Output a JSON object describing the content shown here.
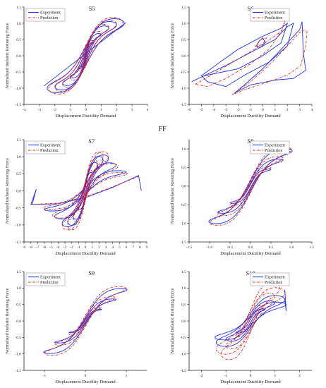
{
  "figure": {
    "title": "FF",
    "legend": {
      "experiment": "Experiment",
      "prediction": "Prediction"
    },
    "colors": {
      "experiment": "#1f2fe6",
      "prediction": "#e01b1b",
      "axis": "#222222"
    }
  },
  "chart_data": [
    {
      "type": "line",
      "panel_label": "S5",
      "xlabel": "Displacement Ductility Demand",
      "ylabel": "Normalized Inelastic Restoring Force",
      "xlim": [
        -4,
        4
      ],
      "ylim": [
        -1.5,
        1.5
      ],
      "xticks": [
        "-4",
        "-3",
        "-2",
        "-1",
        "0",
        "1",
        "2",
        "3",
        "4"
      ],
      "yticks": [
        "-1.5",
        "-1.0",
        "-0.5",
        "0.0",
        "0.5",
        "1.0",
        "1.5"
      ],
      "legend_position": "top-left",
      "grid": false,
      "series": [
        {
          "name": "Experiment",
          "style": "solid",
          "loops": [
            {
              "amp": 0.5,
              "f": 0.4,
              "w": 0.08
            },
            {
              "amp": 1.0,
              "f": 0.65,
              "w": 0.12
            },
            {
              "amp": 1.5,
              "f": 0.85,
              "w": 0.16
            },
            {
              "amp": 2.0,
              "f": 0.95,
              "w": 0.2
            },
            {
              "amp": 2.5,
              "f": 1.0,
              "w": 0.24
            }
          ],
          "extra_points": [
            [
              -2.7,
              -0.93
            ],
            [
              2.6,
              1.02
            ]
          ]
        },
        {
          "name": "Prediction",
          "style": "dashdot",
          "loops": [
            {
              "amp": 0.5,
              "f": 0.45,
              "w": 0.1
            },
            {
              "amp": 1.0,
              "f": 0.7,
              "w": 0.15
            },
            {
              "amp": 1.5,
              "f": 0.88,
              "w": 0.19
            },
            {
              "amp": 2.0,
              "f": 0.98,
              "w": 0.22
            },
            {
              "amp": 2.4,
              "f": 1.02,
              "w": 0.26
            }
          ],
          "extra_points": []
        }
      ]
    },
    {
      "type": "line",
      "panel_label": "S6",
      "xlabel": "Displacement Ductility Demand",
      "ylabel": "Normalized Inelastic Restoring Force",
      "xlim": [
        -6,
        4
      ],
      "ylim": [
        -1.5,
        1.5
      ],
      "xticks": [
        "-6",
        "-5",
        "-4",
        "-3",
        "-2",
        "-1",
        "0",
        "1",
        "2",
        "3",
        "4"
      ],
      "yticks": [
        "-1.5",
        "-1.0",
        "-0.5",
        "0.0",
        "0.5",
        "1.0",
        "1.5"
      ],
      "legend_position": "top-right",
      "grid": false,
      "series": [
        {
          "name": "Experiment",
          "style": "solid",
          "paths": [
            [
              [
                -5.8,
                -0.8
              ],
              [
                -4.8,
                -0.62
              ],
              [
                -3.0,
                -0.3
              ],
              [
                -1.0,
                0.1
              ],
              [
                1.0,
                0.5
              ],
              [
                2.0,
                0.9
              ],
              [
                2.5,
                1.0
              ],
              [
                2.0,
                0.3
              ],
              [
                0.5,
                -0.2
              ],
              [
                -1.5,
                -0.6
              ],
              [
                -3.0,
                -0.95
              ],
              [
                -4.5,
                -0.8
              ],
              [
                -5.0,
                -0.62
              ],
              [
                -3.5,
                -0.2
              ],
              [
                -2.0,
                0.2
              ],
              [
                0.0,
                0.6
              ],
              [
                1.5,
                0.85
              ],
              [
                2.0,
                1.0
              ],
              [
                1.5,
                0.4
              ],
              [
                0.0,
                0.0
              ],
              [
                -2.0,
                -0.4
              ],
              [
                -4.8,
                -0.62
              ]
            ],
            [
              [
                -2.3,
                -1.15
              ],
              [
                -1.5,
                -0.9
              ],
              [
                0.0,
                -0.4
              ],
              [
                1.5,
                0.2
              ],
              [
                2.5,
                0.6
              ],
              [
                3.0,
                0.8
              ],
              [
                3.2,
                1.05
              ],
              [
                3.3,
                0.1
              ],
              [
                3.5,
                -0.45
              ],
              [
                2.5,
                -0.7
              ],
              [
                1.0,
                -0.75
              ],
              [
                -1.0,
                -0.9
              ],
              [
                -2.3,
                -1.15
              ]
            ],
            [
              [
                -0.5,
                0.3
              ],
              [
                -0.3,
                0.45
              ],
              [
                0.0,
                0.55
              ],
              [
                0.2,
                0.4
              ],
              [
                -0.2,
                0.25
              ],
              [
                -0.5,
                0.3
              ]
            ]
          ]
        },
        {
          "name": "Prediction",
          "style": "dashdot",
          "paths": [
            [
              [
                -5.5,
                -0.88
              ],
              [
                -4.0,
                -0.55
              ],
              [
                -2.0,
                -0.1
              ],
              [
                0.0,
                0.35
              ],
              [
                1.5,
                0.75
              ],
              [
                1.9,
                1.2
              ],
              [
                1.6,
                0.8
              ],
              [
                0.5,
                0.2
              ],
              [
                -1.0,
                -0.25
              ],
              [
                -3.0,
                -0.7
              ],
              [
                -4.5,
                -0.95
              ],
              [
                -5.5,
                -0.88
              ]
            ],
            [
              [
                -2.5,
                -1.2
              ],
              [
                -1.0,
                -0.8
              ],
              [
                0.5,
                -0.3
              ],
              [
                2.0,
                0.3
              ],
              [
                3.2,
                0.8
              ],
              [
                3.6,
                0.75
              ],
              [
                3.5,
                0.3
              ],
              [
                3.1,
                -0.3
              ],
              [
                2.0,
                -0.6
              ],
              [
                0.5,
                -0.8
              ],
              [
                -1.5,
                -1.05
              ],
              [
                -2.5,
                -1.2
              ]
            ],
            [
              [
                -0.6,
                0.28
              ],
              [
                -0.2,
                0.5
              ],
              [
                0.3,
                0.55
              ],
              [
                0.0,
                0.35
              ],
              [
                -0.6,
                0.28
              ]
            ]
          ]
        }
      ]
    },
    {
      "type": "line",
      "panel_label": "S7",
      "xlabel": "Displacement Ductility Demand",
      "ylabel": "Normalized Inelastic Restoring Force",
      "xlim": [
        -9,
        9
      ],
      "ylim": [
        -1.5,
        1.5
      ],
      "xticks": [
        "-9",
        "-8",
        "-7",
        "-6",
        "-5",
        "-4",
        "-3",
        "-2",
        "-1",
        "0",
        "1",
        "2",
        "3",
        "4",
        "5",
        "6",
        "7",
        "8",
        "9"
      ],
      "yticks": [
        "-1.5",
        "-1.0",
        "-0.5",
        "0.0",
        "0.5",
        "1.0",
        "1.5"
      ],
      "legend_position": "top-left",
      "grid": false,
      "series": [
        {
          "name": "Experiment",
          "style": "solid",
          "loops": [
            {
              "amp": 1.0,
              "f": 0.5,
              "w": 0.15
            },
            {
              "amp": 1.8,
              "f": 0.75,
              "w": 0.2
            },
            {
              "amp": 2.6,
              "f": 0.9,
              "w": 0.22
            },
            {
              "amp": 3.4,
              "f": 0.95,
              "w": 0.2
            },
            {
              "amp": 4.5,
              "f": 0.75,
              "w": 0.18
            },
            {
              "amp": 6.0,
              "f": 0.55,
              "w": 0.15
            }
          ],
          "extra_points": [
            [
              -7.8,
              -0.4
            ],
            [
              -8.0,
              -0.4
            ],
            [
              -7.2,
              0.05
            ],
            [
              -7.8,
              -0.4
            ],
            [
              -4.0,
              -0.38
            ],
            [
              0.0,
              -0.2
            ],
            [
              4.0,
              0.1
            ],
            [
              7.8,
              0.45
            ],
            [
              8.2,
              0.0
            ]
          ]
        },
        {
          "name": "Prediction",
          "style": "dashdot",
          "loops": [
            {
              "amp": 1.0,
              "f": 0.55,
              "w": 0.17
            },
            {
              "amp": 1.8,
              "f": 0.8,
              "w": 0.22
            },
            {
              "amp": 2.6,
              "f": 1.0,
              "w": 0.24
            },
            {
              "amp": 3.4,
              "f": 1.02,
              "w": 0.22
            },
            {
              "amp": 4.8,
              "f": 0.72,
              "w": 0.2
            },
            {
              "amp": 6.2,
              "f": 0.5,
              "w": 0.15
            }
          ],
          "extra_points": [
            [
              -8.0,
              -0.4
            ],
            [
              -4.0,
              -0.36
            ],
            [
              0.0,
              -0.18
            ],
            [
              4.0,
              0.12
            ],
            [
              7.8,
              0.42
            ]
          ]
        }
      ]
    },
    {
      "type": "line",
      "panel_label": "S8",
      "xlabel": "Displacement Ductility Demand",
      "ylabel": "Normalized Inelastic Restoring Force",
      "xlim": [
        -1.5,
        1.5
      ],
      "ylim": [
        -1.5,
        1.25
      ],
      "xticks": [
        "-1.5",
        "-1.0",
        "-0.5",
        "0.0",
        "0.5",
        "1.0",
        "1.5"
      ],
      "yticks": [
        "-1.5",
        "-1.0",
        "-0.5",
        "0.0",
        "0.5",
        "1.0"
      ],
      "legend_position": "top-left",
      "grid": false,
      "series": [
        {
          "name": "Experiment",
          "style": "solid",
          "loops": [
            {
              "amp": 0.5,
              "f": 0.45,
              "w": 0.08
            },
            {
              "amp": 0.8,
              "f": 0.7,
              "w": 0.1
            },
            {
              "amp": 1.02,
              "f": 0.95,
              "w": 0.13
            }
          ],
          "extra_points": [
            [
              0.6,
              1.0
            ],
            [
              1.0,
              0.98
            ]
          ]
        },
        {
          "name": "Prediction",
          "style": "dashdot",
          "loops": [
            {
              "amp": 0.5,
              "f": 0.5,
              "w": 0.1
            },
            {
              "amp": 0.8,
              "f": 0.75,
              "w": 0.13
            },
            {
              "amp": 1.0,
              "f": 0.98,
              "w": 0.15
            }
          ],
          "extra_points": []
        }
      ]
    },
    {
      "type": "line",
      "panel_label": "S9",
      "xlabel": "Displacement Ductility Demand",
      "ylabel": "Normalized Inelastic Restoring Force",
      "xlim": [
        -1.5,
        1.5
      ],
      "ylim": [
        -1.5,
        1.5
      ],
      "xticks": [
        "-1",
        "0",
        "1"
      ],
      "yticks": [
        "-1.5",
        "-1.0",
        "-0.5",
        "0.0",
        "0.5",
        "1.0",
        "1.5"
      ],
      "legend_position": "top-left",
      "grid": false,
      "series": [
        {
          "name": "Experiment",
          "style": "solid",
          "loops": [
            {
              "amp": 0.4,
              "f": 0.35,
              "w": 0.06
            },
            {
              "amp": 0.75,
              "f": 0.65,
              "w": 0.08
            },
            {
              "amp": 1.02,
              "f": 0.95,
              "w": 0.1
            }
          ],
          "extra_points": []
        },
        {
          "name": "Prediction",
          "style": "dashdot",
          "loops": [
            {
              "amp": 0.4,
              "f": 0.4,
              "w": 0.09
            },
            {
              "amp": 0.75,
              "f": 0.7,
              "w": 0.12
            },
            {
              "amp": 1.0,
              "f": 0.98,
              "w": 0.14
            }
          ],
          "extra_points": []
        }
      ]
    },
    {
      "type": "line",
      "panel_label": "S10",
      "xlabel": "Displacement Ductility Demand",
      "ylabel": "Normalized Inelastic Restoring Force",
      "xlim": [
        -2.5,
        2.5
      ],
      "ylim": [
        -1.5,
        1.5
      ],
      "xticks": [
        "-2",
        "-1",
        "0",
        "1",
        "2"
      ],
      "yticks": [
        "-1.5",
        "-1.0",
        "-0.5",
        "0.0",
        "0.5",
        "1.0",
        "1.5"
      ],
      "legend_position": "top-left",
      "grid": false,
      "series": [
        {
          "name": "Experiment",
          "style": "solid",
          "loops": [
            {
              "amp": 0.6,
              "f": 0.35,
              "w": 0.12
            },
            {
              "amp": 1.0,
              "f": 0.55,
              "w": 0.2
            },
            {
              "amp": 1.4,
              "f": 0.65,
              "w": 0.3
            },
            {
              "amp": 1.45,
              "f": 0.5,
              "w": 0.25
            }
          ],
          "extra_points": [
            [
              1.4,
              0.95
            ],
            [
              1.45,
              0.3
            ],
            [
              1.4,
              0.6
            ]
          ]
        },
        {
          "name": "Prediction",
          "style": "dashdot",
          "loops": [
            {
              "amp": 0.6,
              "f": 0.45,
              "w": 0.15
            },
            {
              "amp": 1.0,
              "f": 0.75,
              "w": 0.22
            },
            {
              "amp": 1.2,
              "f": 1.0,
              "w": 0.28
            },
            {
              "amp": 1.4,
              "f": 0.85,
              "w": 0.3
            }
          ],
          "extra_points": []
        }
      ]
    }
  ]
}
